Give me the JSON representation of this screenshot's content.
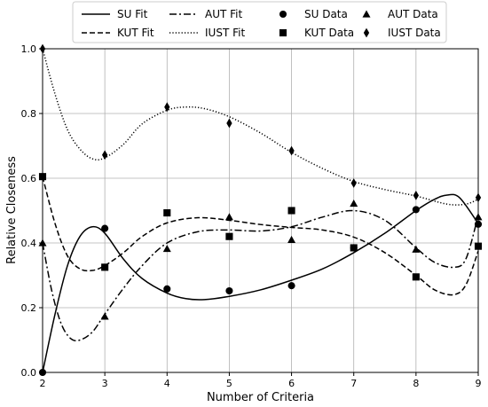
{
  "chart_data": {
    "type": "line",
    "title": "",
    "xlabel": "Number of Criteria",
    "ylabel": "Relative Closeness",
    "xlim": [
      2,
      9
    ],
    "ylim": [
      0.0,
      1.0
    ],
    "xticks": [
      2,
      3,
      4,
      5,
      6,
      7,
      8,
      9
    ],
    "yticks": [
      0.0,
      0.2,
      0.4,
      0.6,
      0.8,
      1.0
    ],
    "ytick_labels": [
      "0.0",
      "0.2",
      "0.4",
      "0.6",
      "0.8",
      "1.0"
    ],
    "grid": true,
    "legend_position": "top",
    "legend": [
      {
        "label": "SU Fit",
        "kind": "line",
        "style": "solid"
      },
      {
        "label": "AUT Fit",
        "kind": "line",
        "style": "dashdot"
      },
      {
        "label": "SU Data",
        "kind": "marker",
        "marker": "circle"
      },
      {
        "label": "AUT Data",
        "kind": "marker",
        "marker": "triangle"
      },
      {
        "label": "KUT Fit",
        "kind": "line",
        "style": "dashed"
      },
      {
        "label": "IUST Fit",
        "kind": "line",
        "style": "dotted"
      },
      {
        "label": "KUT Data",
        "kind": "marker",
        "marker": "square"
      },
      {
        "label": "IUST Data",
        "kind": "marker",
        "marker": "diamond"
      }
    ],
    "series": [
      {
        "name": "SU",
        "line_style": "solid",
        "marker": "circle",
        "data_x": [
          2,
          3,
          4,
          5,
          6,
          7,
          8,
          9
        ],
        "data_y": [
          0.0,
          0.445,
          0.258,
          0.252,
          0.268,
          0.385,
          0.503,
          0.458
        ],
        "fit_x": [
          2,
          2.2,
          2.4,
          2.6,
          2.8,
          3,
          3.3,
          3.6,
          4,
          4.3,
          4.6,
          5,
          5.5,
          6,
          6.5,
          7,
          7.5,
          8,
          8.3,
          8.5,
          8.7,
          9
        ],
        "fit_y": [
          0.0,
          0.18,
          0.33,
          0.42,
          0.45,
          0.43,
          0.35,
          0.29,
          0.245,
          0.228,
          0.225,
          0.235,
          0.255,
          0.285,
          0.32,
          0.37,
          0.43,
          0.5,
          0.535,
          0.548,
          0.54,
          0.46
        ]
      },
      {
        "name": "KUT",
        "line_style": "dashed",
        "marker": "square",
        "data_x": [
          2,
          3,
          4,
          5,
          6,
          7,
          8,
          9
        ],
        "data_y": [
          0.605,
          0.325,
          0.493,
          0.42,
          0.5,
          0.385,
          0.295,
          0.39
        ],
        "fit_x": [
          2,
          2.2,
          2.4,
          2.6,
          2.8,
          3,
          3.3,
          3.6,
          4,
          4.5,
          5,
          5.5,
          6,
          6.5,
          7,
          7.5,
          8,
          8.3,
          8.6,
          8.8,
          9
        ],
        "fit_y": [
          0.605,
          0.46,
          0.36,
          0.32,
          0.315,
          0.33,
          0.37,
          0.42,
          0.462,
          0.478,
          0.47,
          0.457,
          0.448,
          0.44,
          0.418,
          0.37,
          0.3,
          0.255,
          0.24,
          0.27,
          0.375
        ]
      },
      {
        "name": "AUT",
        "line_style": "dashdot",
        "marker": "triangle",
        "data_x": [
          2,
          3,
          4,
          5,
          6,
          7,
          8,
          9
        ],
        "data_y": [
          0.4,
          0.173,
          0.382,
          0.48,
          0.41,
          0.522,
          0.38,
          0.48
        ],
        "fit_x": [
          2,
          2.15,
          2.3,
          2.45,
          2.6,
          2.8,
          3,
          3.3,
          3.6,
          4,
          4.5,
          5,
          5.5,
          6,
          6.5,
          7,
          7.5,
          8,
          8.3,
          8.6,
          8.8,
          9
        ],
        "fit_y": [
          0.4,
          0.25,
          0.15,
          0.105,
          0.1,
          0.125,
          0.18,
          0.26,
          0.33,
          0.4,
          0.435,
          0.44,
          0.437,
          0.45,
          0.48,
          0.5,
          0.47,
          0.385,
          0.34,
          0.325,
          0.35,
          0.485
        ]
      },
      {
        "name": "IUST",
        "line_style": "dotted",
        "marker": "diamond",
        "data_x": [
          2,
          3,
          4,
          5,
          6,
          7,
          8,
          9
        ],
        "data_y": [
          1.0,
          0.672,
          0.82,
          0.77,
          0.685,
          0.585,
          0.547,
          0.54
        ],
        "fit_x": [
          2,
          2.2,
          2.4,
          2.6,
          2.8,
          3,
          3.3,
          3.6,
          4,
          4.3,
          4.6,
          5,
          5.5,
          6,
          6.5,
          7,
          7.5,
          8,
          8.5,
          8.8,
          9
        ],
        "fit_y": [
          1.0,
          0.86,
          0.75,
          0.69,
          0.66,
          0.663,
          0.705,
          0.768,
          0.81,
          0.82,
          0.815,
          0.79,
          0.74,
          0.68,
          0.63,
          0.59,
          0.565,
          0.545,
          0.52,
          0.52,
          0.535
        ]
      }
    ]
  }
}
